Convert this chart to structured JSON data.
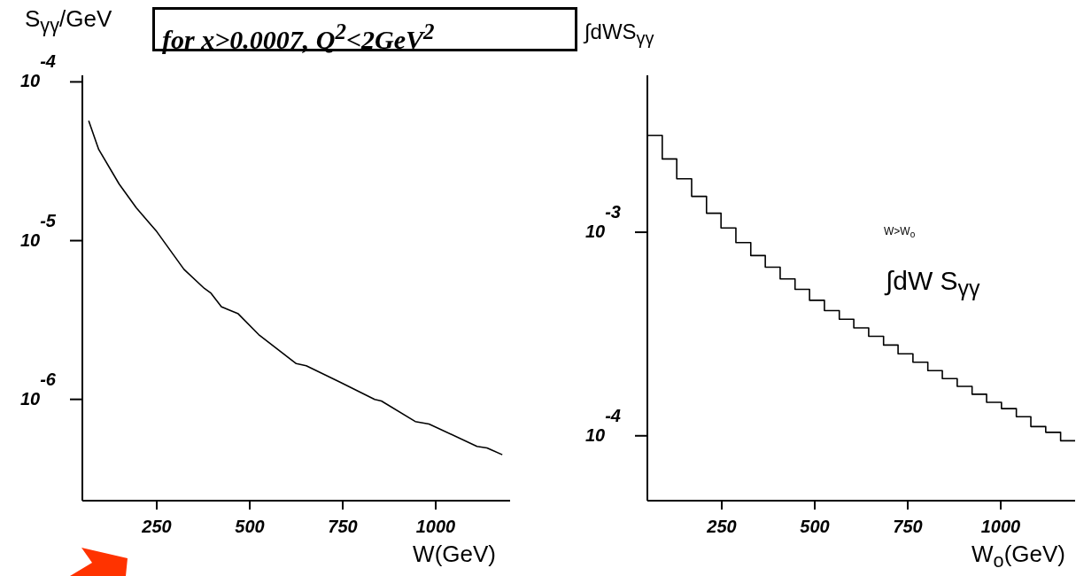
{
  "chart_data": [
    {
      "type": "line",
      "title": "for x>0.0007, Q$^{2}$<2GeV$^{2}$",
      "ylabel": "S$_{γγ}$/GeV",
      "xlabel": "W(GeV)",
      "color": "#000000",
      "x": [
        67,
        94,
        149,
        195,
        250,
        323,
        378,
        396,
        424,
        469,
        524,
        625,
        652,
        744,
        836,
        854,
        945,
        982,
        1111,
        1138,
        1179
      ],
      "values": [
        5.7e-05,
        3.75e-05,
        2.27e-05,
        1.61e-05,
        1.14e-05,
        6.6e-06,
        5e-06,
        4.66e-06,
        3.83e-06,
        3.46e-06,
        2.56e-06,
        1.68e-06,
        1.63e-06,
        1.28e-06,
        1e-06,
        9.76e-07,
        7.25e-07,
        7e-07,
        5.05e-07,
        4.94e-07,
        4.48e-07
      ],
      "xlim": [
        50,
        1200
      ],
      "ylim": [
        2.3e-07,
        0.00011
      ],
      "xticks": [
        250,
        500,
        750,
        1000
      ],
      "yticks": [
        {
          "value": 1e-06,
          "label": "10$^{-6}$"
        },
        {
          "value": 1e-05,
          "label": "10$^{-5}$"
        },
        {
          "value": 0.0001,
          "label": "10$^{-4}$"
        }
      ],
      "log": "y"
    },
    {
      "type": "histogram",
      "ylabel": "∫dWS$_{γγ}$",
      "xlabel": "W$_{o}$(GeV)",
      "color": "#000000",
      "bins": [
        50,
        90,
        129,
        169,
        209,
        248,
        288,
        328,
        367,
        407,
        447,
        486,
        526,
        566,
        605,
        645,
        685,
        724,
        764,
        804,
        843,
        883,
        923,
        962,
        1002,
        1042,
        1081,
        1121,
        1161,
        1200
      ],
      "values": [
        0.00299,
        0.00229,
        0.00183,
        0.0015,
        0.00124,
        0.00105,
        0.00089,
        0.000768,
        0.000674,
        0.00059,
        0.000524,
        0.000463,
        0.000412,
        0.000374,
        0.000339,
        0.000308,
        0.000279,
        0.000253,
        0.00023,
        0.000209,
        0.000191,
        0.000175,
        0.00016,
        0.000146,
        0.000136,
        0.000124,
        0.000111,
        0.000104,
        9.45e-05
      ],
      "xlim": [
        50,
        1200
      ],
      "ylim": [
        4.8e-05,
        0.0059
      ],
      "xticks": [
        250,
        500,
        750,
        1000
      ],
      "yticks": [
        {
          "value": 0.0001,
          "label": "10$^{-4}$"
        },
        {
          "value": 0.001,
          "label": "10$^{-3}$"
        }
      ],
      "log": "y",
      "annotations": [
        "W>W$_{o}$",
        "∫dW S$_{γγ}$"
      ]
    }
  ]
}
